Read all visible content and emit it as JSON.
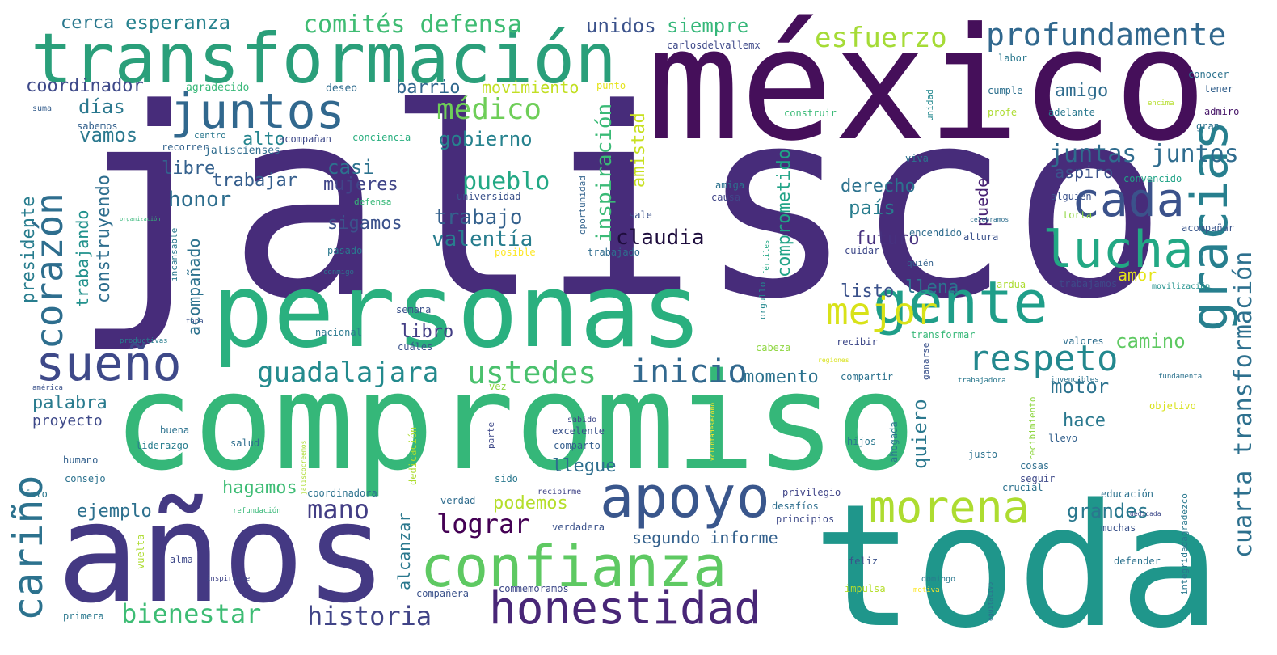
{
  "words": [
    {
      "t": "jalisco",
      "c": "#472c7a"
    },
    {
      "t": "compromiso",
      "c": "#35b779"
    },
    {
      "t": "méxico",
      "c": "#450f5a"
    },
    {
      "t": "personas",
      "c": "#2ab07f"
    },
    {
      "t": "toda",
      "c": "#1f968b"
    },
    {
      "t": "años",
      "c": "#443983"
    },
    {
      "t": "transformación",
      "c": "#2a9f7a"
    },
    {
      "t": "gracias",
      "c": "#277f8e"
    },
    {
      "t": "gente",
      "c": "#1f9e89"
    },
    {
      "t": "confianza",
      "c": "#5ec962"
    },
    {
      "t": "apoyo",
      "c": "#39568c"
    },
    {
      "t": "honestidad",
      "c": "#482677"
    },
    {
      "t": "morena",
      "c": "#addc30"
    },
    {
      "t": "juntos",
      "c": "#31688e"
    },
    {
      "t": "lucha",
      "c": "#22a884"
    },
    {
      "t": "cada",
      "c": "#3b528b"
    },
    {
      "t": "sueño",
      "c": "#3e4989"
    },
    {
      "t": "cariño",
      "c": "#2c728e"
    },
    {
      "t": "corazón",
      "c": "#2e6e8e"
    },
    {
      "t": "mejor",
      "c": "#d8e219"
    },
    {
      "t": "respeto",
      "c": "#23888e"
    },
    {
      "t": "profundamente",
      "c": "#31688e"
    },
    {
      "t": "esfuerzo",
      "c": "#a5db36"
    },
    {
      "t": "inicio",
      "c": "#31688e"
    },
    {
      "t": "guadalajara",
      "c": "#238a8d"
    },
    {
      "t": "ustedes",
      "c": "#4ac16d"
    },
    {
      "t": "médico",
      "c": "#6ece58"
    },
    {
      "t": "bienestar",
      "c": "#3dbc74"
    },
    {
      "t": "historia",
      "c": "#414487"
    },
    {
      "t": "comités defensa",
      "c": "#3fbc73"
    },
    {
      "t": "cuarta transformación",
      "c": "#2d708e"
    },
    {
      "t": "lograr",
      "c": "#440154"
    },
    {
      "t": "mano",
      "c": "#433e85"
    },
    {
      "t": "juntas juntos",
      "c": "#2f6c8e"
    },
    {
      "t": "esperanza",
      "c": "#26828e"
    },
    {
      "t": "unidos",
      "c": "#3b528b"
    },
    {
      "t": "siempre",
      "c": "#35b779"
    },
    {
      "t": "cerca",
      "c": "#2a788e"
    },
    {
      "t": "coordinador",
      "c": "#3e4989"
    },
    {
      "t": "movimiento",
      "c": "#c2df23"
    },
    {
      "t": "barrio",
      "c": "#31688e"
    },
    {
      "t": "días",
      "c": "#2a788e"
    },
    {
      "t": "vamos",
      "c": "#2a788e"
    },
    {
      "t": "gobierno",
      "c": "#26828e"
    },
    {
      "t": "alto",
      "c": "#25858e"
    },
    {
      "t": "inspiración",
      "c": "#3aba76"
    },
    {
      "t": "amistad",
      "c": "#c8e020"
    },
    {
      "t": "pueblo",
      "c": "#22a884"
    },
    {
      "t": "trabajo",
      "c": "#34618d"
    },
    {
      "t": "valentía",
      "c": "#287d8e"
    },
    {
      "t": "claudia",
      "c": "#1f0e3e"
    },
    {
      "t": "país",
      "c": "#287d8e"
    },
    {
      "t": "futuro",
      "c": "#46307e"
    },
    {
      "t": "derecho",
      "c": "#2c728e"
    },
    {
      "t": "casi",
      "c": "#2c728e"
    },
    {
      "t": "mujeres",
      "c": "#404588"
    },
    {
      "t": "trabajar",
      "c": "#355e8d"
    },
    {
      "t": "libre",
      "c": "#34618d"
    },
    {
      "t": "honor",
      "c": "#2e6e8e"
    },
    {
      "t": "sigamos",
      "c": "#3b528b"
    },
    {
      "t": "comprometido",
      "c": "#20a386"
    },
    {
      "t": "amigo",
      "c": "#2f6c8e"
    },
    {
      "t": "aspiro",
      "c": "#3b528b"
    },
    {
      "t": "puede",
      "c": "#482173"
    },
    {
      "t": "quiero",
      "c": "#2a788e"
    },
    {
      "t": "motor",
      "c": "#2c728e"
    },
    {
      "t": "hace",
      "c": "#2a788e"
    },
    {
      "t": "grandes",
      "c": "#2a788e"
    },
    {
      "t": "amor",
      "c": "#e5e419"
    },
    {
      "t": "camino",
      "c": "#5ec962"
    },
    {
      "t": "momento",
      "c": "#2c728e"
    },
    {
      "t": "palabra",
      "c": "#297b8e"
    },
    {
      "t": "proyecto",
      "c": "#3e4989"
    },
    {
      "t": "ejemplo",
      "c": "#2d708e"
    },
    {
      "t": "hagamos",
      "c": "#3dbc74"
    },
    {
      "t": "podemos",
      "c": "#b5de2b"
    },
    {
      "t": "llegue",
      "c": "#2e6e8e"
    },
    {
      "t": "libro",
      "c": "#433e85"
    },
    {
      "t": "listo",
      "c": "#3b528b"
    },
    {
      "t": "llena",
      "c": "#2c728e"
    },
    {
      "t": "presidente",
      "c": "#287d8e"
    },
    {
      "t": "construyendo",
      "c": "#2e6e8e"
    },
    {
      "t": "trabajando",
      "c": "#21918c"
    },
    {
      "t": "acompañado",
      "c": "#2c728e"
    },
    {
      "t": "alcanzar",
      "c": "#2a788e"
    },
    {
      "t": "segundo informe",
      "c": "#34618d"
    },
    {
      "t": "carlosdelvallemx",
      "c": "#3e4989"
    },
    {
      "t": "agradecido",
      "c": "#37b878"
    },
    {
      "t": "deseo",
      "c": "#2f6c8e"
    },
    {
      "t": "punto",
      "c": "#e5e419"
    },
    {
      "t": "labor",
      "c": "#2a788e"
    },
    {
      "t": "conocer",
      "c": "#2c728e"
    },
    {
      "t": "tener",
      "c": "#34618d"
    },
    {
      "t": "unidad",
      "c": "#23888e"
    },
    {
      "t": "cumple",
      "c": "#2d708e"
    },
    {
      "t": "suma",
      "c": "#355e8d"
    },
    {
      "t": "sabemos",
      "c": "#34618d"
    },
    {
      "t": "acompañan",
      "c": "#3e4989"
    },
    {
      "t": "centro",
      "c": "#2a788e"
    },
    {
      "t": "recorrer",
      "c": "#33638d"
    },
    {
      "t": "jaliscienses",
      "c": "#2f6c8e"
    },
    {
      "t": "conciencia",
      "c": "#29af7f"
    },
    {
      "t": "construir",
      "c": "#3aba76"
    },
    {
      "t": "profe",
      "c": "#addc30"
    },
    {
      "t": "adelante",
      "c": "#2a788e"
    },
    {
      "t": "encima",
      "c": "#b5de2b"
    },
    {
      "t": "admiro",
      "c": "#481769"
    },
    {
      "t": "gran",
      "c": "#2c728e"
    },
    {
      "t": "viva",
      "c": "#2c728e"
    },
    {
      "t": "convencido",
      "c": "#20a386"
    },
    {
      "t": "alguien",
      "c": "#3b528b"
    },
    {
      "t": "torta",
      "c": "#90d743"
    },
    {
      "t": "acompañar",
      "c": "#39568c"
    },
    {
      "t": "universidad",
      "c": "#3b528b"
    },
    {
      "t": "oportunidad",
      "c": "#33638d"
    },
    {
      "t": "amiga",
      "c": "#2c728e"
    },
    {
      "t": "causa",
      "c": "#404588"
    },
    {
      "t": "sale",
      "c": "#3b528b"
    },
    {
      "t": "defensa",
      "c": "#37b878"
    },
    {
      "t": "encendido",
      "c": "#2f6c8e"
    },
    {
      "t": "altura",
      "c": "#3b528b"
    },
    {
      "t": "celebramos",
      "c": "#2e6e8e"
    },
    {
      "t": "organización",
      "c": "#35b779"
    },
    {
      "t": "pasado",
      "c": "#2a788e"
    },
    {
      "t": "incansable",
      "c": "#2a788e"
    },
    {
      "t": "posible",
      "c": "#fde725"
    },
    {
      "t": "trabajado",
      "c": "#2f6c8e"
    },
    {
      "t": "cuidar",
      "c": "#3e4989"
    },
    {
      "t": "fértiles",
      "c": "#22a884"
    },
    {
      "t": "quién",
      "c": "#34618d"
    },
    {
      "t": "conmigo",
      "c": "#2c728e"
    },
    {
      "t": "orgullo",
      "c": "#23888e"
    },
    {
      "t": "ardua",
      "c": "#addc30"
    },
    {
      "t": "trabajamos",
      "c": "#3e4989"
    },
    {
      "t": "movilización",
      "c": "#21918c"
    },
    {
      "t": "semana",
      "c": "#3b528b"
    },
    {
      "t": "nacional",
      "c": "#2a788e"
    },
    {
      "t": "recibir",
      "c": "#3e4989"
    },
    {
      "t": "transformar",
      "c": "#37b878"
    },
    {
      "t": "valores",
      "c": "#2e6e8e"
    },
    {
      "t": "tapa",
      "c": "#3b528b"
    },
    {
      "t": "productivas",
      "c": "#287d8e"
    },
    {
      "t": "cuáles",
      "c": "#3b528b"
    },
    {
      "t": "cabeza",
      "c": "#90d743"
    },
    {
      "t": "regiones",
      "c": "#d8e219"
    },
    {
      "t": "compartir",
      "c": "#2c728e"
    },
    {
      "t": "ganarse",
      "c": "#3b528b"
    },
    {
      "t": "trabajadora",
      "c": "#2a788e"
    },
    {
      "t": "invencibles",
      "c": "#2c728e"
    },
    {
      "t": "fundamenta",
      "c": "#2c728e"
    },
    {
      "t": "objetivo",
      "c": "#d8e219"
    },
    {
      "t": "américa",
      "c": "#3b528b"
    },
    {
      "t": "vez",
      "c": "#90d743"
    },
    {
      "t": "voluntadesecomo",
      "c": "#fde725"
    },
    {
      "t": "recibimiento",
      "c": "#90d743"
    },
    {
      "t": "sabido",
      "c": "#3e4989"
    },
    {
      "t": "parte",
      "c": "#3e4989"
    },
    {
      "t": "dedicación",
      "c": "#addc30"
    },
    {
      "t": "buena",
      "c": "#2c728e"
    },
    {
      "t": "excelente",
      "c": "#3b528b"
    },
    {
      "t": "liderazgo",
      "c": "#287d8e"
    },
    {
      "t": "comparto",
      "c": "#355e8d"
    },
    {
      "t": "humano",
      "c": "#34618d"
    },
    {
      "t": "salud",
      "c": "#2e6e8e"
    },
    {
      "t": "hijos",
      "c": "#2a788e"
    },
    {
      "t": "ahogada",
      "c": "#2a788e"
    },
    {
      "t": "justo",
      "c": "#2c728e"
    },
    {
      "t": "llevo",
      "c": "#34618d"
    },
    {
      "t": "cosas",
      "c": "#2e6e8e"
    },
    {
      "t": "seguir",
      "c": "#3e4989"
    },
    {
      "t": "consejo",
      "c": "#2c728e"
    },
    {
      "t": "sido",
      "c": "#2a788e"
    },
    {
      "t": "jaliscocreemos",
      "c": "#addc30"
    },
    {
      "t": "foto",
      "c": "#2a788e"
    },
    {
      "t": "coordinadora",
      "c": "#2c728e"
    },
    {
      "t": "recibirme",
      "c": "#404588"
    },
    {
      "t": "verdad",
      "c": "#2f6c8e"
    },
    {
      "t": "privilegio",
      "c": "#404588"
    },
    {
      "t": "crucial",
      "c": "#2c728e"
    },
    {
      "t": "educación",
      "c": "#2c728e"
    },
    {
      "t": "refundación",
      "c": "#37b878"
    },
    {
      "t": "verdadera",
      "c": "#3b528b"
    },
    {
      "t": "desafíos",
      "c": "#2e6e8e"
    },
    {
      "t": "principios",
      "c": "#3e4989"
    },
    {
      "t": "integridadagradezco",
      "c": "#2a788e"
    },
    {
      "t": "muchas",
      "c": "#3b528b"
    },
    {
      "t": "dedicada",
      "c": "#3e4989"
    },
    {
      "t": "vuelta",
      "c": "#addc30"
    },
    {
      "t": "alma",
      "c": "#3e4989"
    },
    {
      "t": "feliz",
      "c": "#3b528b"
    },
    {
      "t": "defender",
      "c": "#2c728e"
    },
    {
      "t": "compañera",
      "c": "#3b528b"
    },
    {
      "t": "commemoramos",
      "c": "#3e4989"
    },
    {
      "t": "inspirarme",
      "c": "#404588"
    },
    {
      "t": "domingo",
      "c": "#2a788e"
    },
    {
      "t": "impulsa",
      "c": "#b5de2b"
    },
    {
      "t": "motiva",
      "c": "#fde725"
    },
    {
      "t": "equitativo",
      "c": "#2c728e"
    },
    {
      "t": "primera",
      "c": "#2a788e"
    }
  ]
}
